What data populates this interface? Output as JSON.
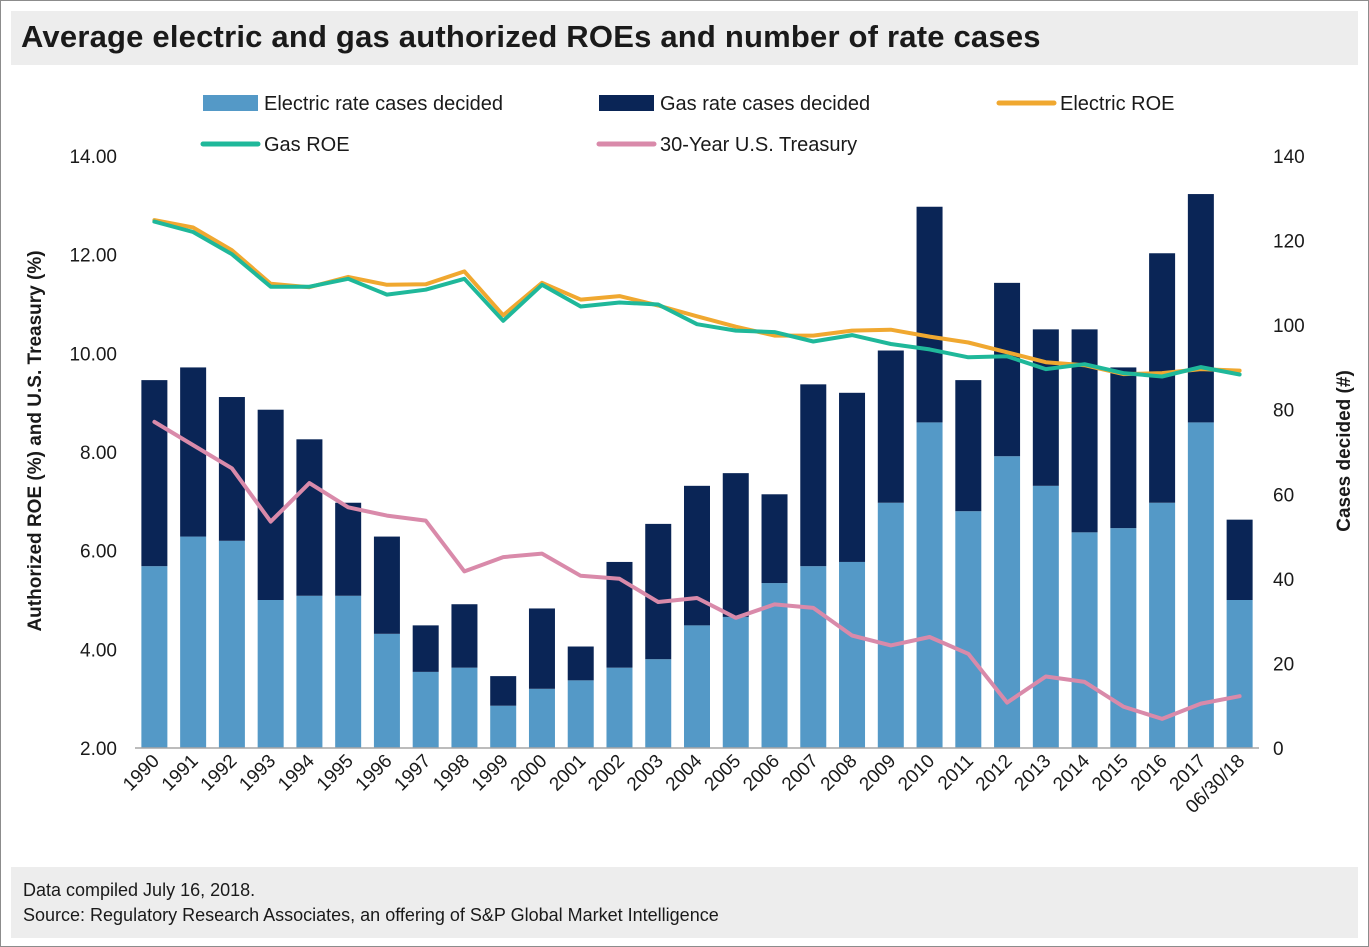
{
  "title": "Average electric and gas authorized ROEs and number of rate cases",
  "footer": {
    "compiled": "Data compiled July 16, 2018.",
    "source": "Source: Regulatory Research Associates, an offering of S&P Global Market Intelligence"
  },
  "chart_data": {
    "type": "bar+line",
    "title": "Average electric and gas authorized ROEs and number of rate cases",
    "categories": [
      "1990",
      "1991",
      "1992",
      "1993",
      "1994",
      "1995",
      "1996",
      "1997",
      "1998",
      "1999",
      "2000",
      "2001",
      "2002",
      "2003",
      "2004",
      "2005",
      "2006",
      "2007",
      "2008",
      "2009",
      "2010",
      "2011",
      "2012",
      "2013",
      "2014",
      "2015",
      "2016",
      "2017",
      "06/30/18"
    ],
    "left_axis": {
      "label": "Authorized ROE  (%) and U.S. Treasury (%)",
      "min": 2,
      "max": 14,
      "step": 2,
      "ticks": [
        "2.00",
        "4.00",
        "6.00",
        "8.00",
        "10.00",
        "12.00",
        "14.00"
      ]
    },
    "right_axis": {
      "label": "Cases decided (#)",
      "min": 0,
      "max": 140,
      "step": 20,
      "ticks": [
        "0",
        "20",
        "40",
        "60",
        "80",
        "100",
        "120",
        "140"
      ]
    },
    "bar_series": [
      {
        "name": "Electric rate cases decided",
        "color": "#5499c7",
        "axis": "right",
        "values": [
          43,
          50,
          49,
          35,
          36,
          36,
          27,
          18,
          19,
          10,
          14,
          16,
          19,
          21,
          29,
          31,
          39,
          43,
          44,
          58,
          77,
          56,
          69,
          62,
          51,
          52,
          58,
          77,
          35
        ]
      },
      {
        "name": "Gas rate cases decided",
        "color": "#0a2556",
        "axis": "right",
        "values": [
          44,
          40,
          34,
          45,
          37,
          22,
          23,
          11,
          15,
          7,
          19,
          8,
          25,
          32,
          33,
          34,
          21,
          43,
          40,
          36,
          51,
          31,
          41,
          37,
          48,
          38,
          59,
          54,
          19
        ]
      }
    ],
    "line_series": [
      {
        "name": "Electric ROE",
        "color": "#f0a830",
        "axis": "left",
        "values": [
          12.7,
          12.55,
          12.09,
          11.41,
          11.34,
          11.55,
          11.39,
          11.4,
          11.66,
          10.77,
          11.43,
          11.09,
          11.16,
          10.97,
          10.75,
          10.54,
          10.36,
          10.36,
          10.46,
          10.48,
          10.34,
          10.22,
          10.02,
          9.82,
          9.76,
          9.58,
          9.6,
          9.68,
          9.65
        ]
      },
      {
        "name": "Gas ROE",
        "color": "#1fb89a",
        "axis": "left",
        "values": [
          12.67,
          12.46,
          12.01,
          11.35,
          11.35,
          11.51,
          11.19,
          11.29,
          11.51,
          10.66,
          11.39,
          10.95,
          11.03,
          10.99,
          10.59,
          10.46,
          10.43,
          10.24,
          10.37,
          10.19,
          10.08,
          9.92,
          9.94,
          9.68,
          9.78,
          9.6,
          9.53,
          9.72,
          9.57
        ]
      },
      {
        "name": "30-Year U.S. Treasury",
        "color": "#d98aaa",
        "axis": "left",
        "values": [
          8.61,
          8.14,
          7.67,
          6.59,
          7.37,
          6.88,
          6.71,
          6.61,
          5.58,
          5.87,
          5.94,
          5.49,
          5.43,
          4.96,
          5.04,
          4.64,
          4.91,
          4.84,
          4.28,
          4.08,
          4.25,
          3.91,
          2.92,
          3.45,
          3.34,
          2.84,
          2.59,
          2.9,
          3.05
        ]
      }
    ],
    "legend": {
      "position": "top",
      "order": [
        "Electric rate cases decided",
        "Gas rate cases decided",
        "Electric ROE",
        "Gas ROE",
        "30-Year U.S. Treasury"
      ]
    },
    "grid": false
  }
}
